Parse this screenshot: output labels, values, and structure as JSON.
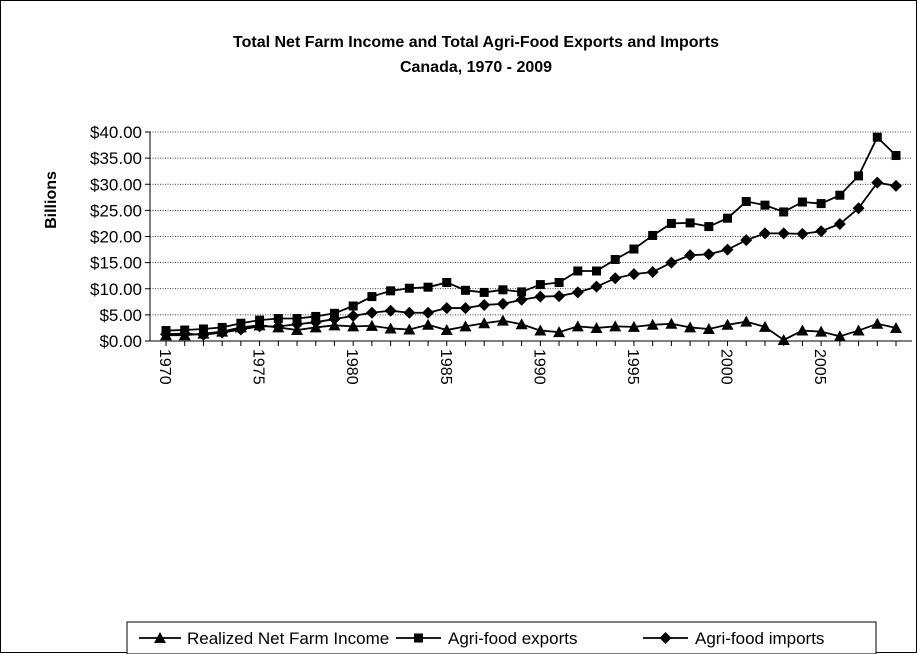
{
  "chart_data": {
    "type": "line",
    "title": "Total Net Farm Income and Total Agri-Food Exports and Imports",
    "subtitle": "Canada, 1970 - 2009",
    "ylabel": "Billions",
    "xlabel": "",
    "ylim": [
      0,
      40
    ],
    "yticks": [
      "$0.00",
      "$5.00",
      "$10.00",
      "$15.00",
      "$20.00",
      "$25.00",
      "$30.00",
      "$35.00",
      "$40.00"
    ],
    "xticks": [
      "1970",
      "1975",
      "1980",
      "1985",
      "1990",
      "1995",
      "2000",
      "2005"
    ],
    "x": [
      1970,
      1971,
      1972,
      1973,
      1974,
      1975,
      1976,
      1977,
      1978,
      1979,
      1980,
      1981,
      1982,
      1983,
      1984,
      1985,
      1986,
      1987,
      1988,
      1989,
      1990,
      1991,
      1992,
      1993,
      1994,
      1995,
      1996,
      1997,
      1998,
      1999,
      2000,
      2001,
      2002,
      2003,
      2004,
      2005,
      2006,
      2007,
      2008,
      2009
    ],
    "grid": true,
    "legend_position": "bottom",
    "series": [
      {
        "name": "Realized Net Farm Income",
        "marker": "triangle",
        "color": "#000000",
        "values": [
          1.1,
          1.1,
          1.4,
          1.8,
          2.6,
          3.0,
          2.6,
          2.1,
          2.6,
          3.0,
          2.8,
          2.9,
          2.4,
          2.2,
          3.1,
          2.1,
          2.8,
          3.4,
          3.9,
          3.2,
          2.0,
          1.7,
          2.8,
          2.5,
          2.8,
          2.7,
          3.1,
          3.3,
          2.6,
          2.3,
          3.1,
          3.7,
          2.7,
          0.2,
          2.0,
          1.8,
          0.9,
          2.0,
          3.3,
          2.5
        ]
      },
      {
        "name": "Agri-food exports",
        "marker": "square",
        "color": "#000000",
        "values": [
          2.0,
          2.1,
          2.3,
          2.6,
          3.4,
          4.0,
          4.3,
          4.3,
          4.7,
          5.3,
          6.7,
          8.5,
          9.6,
          10.1,
          10.3,
          11.2,
          9.7,
          9.3,
          9.8,
          9.4,
          10.8,
          11.2,
          13.4,
          13.4,
          15.6,
          17.6,
          20.2,
          22.5,
          22.6,
          21.9,
          23.5,
          26.7,
          26.0,
          24.7,
          26.6,
          26.3,
          27.9,
          31.6,
          39.0,
          35.5
        ]
      },
      {
        "name": "Agri-food imports",
        "marker": "diamond",
        "color": "#000000",
        "values": [
          1.3,
          1.4,
          1.2,
          1.6,
          2.2,
          2.8,
          2.8,
          3.2,
          3.6,
          4.2,
          4.8,
          5.4,
          5.8,
          5.4,
          5.4,
          6.3,
          6.3,
          6.9,
          7.1,
          7.9,
          8.5,
          8.6,
          9.3,
          10.4,
          12.0,
          12.8,
          13.2,
          15.0,
          16.4,
          16.6,
          17.5,
          19.3,
          20.6,
          20.6,
          20.5,
          21.0,
          22.4,
          25.4,
          30.3,
          29.7
        ]
      }
    ]
  }
}
